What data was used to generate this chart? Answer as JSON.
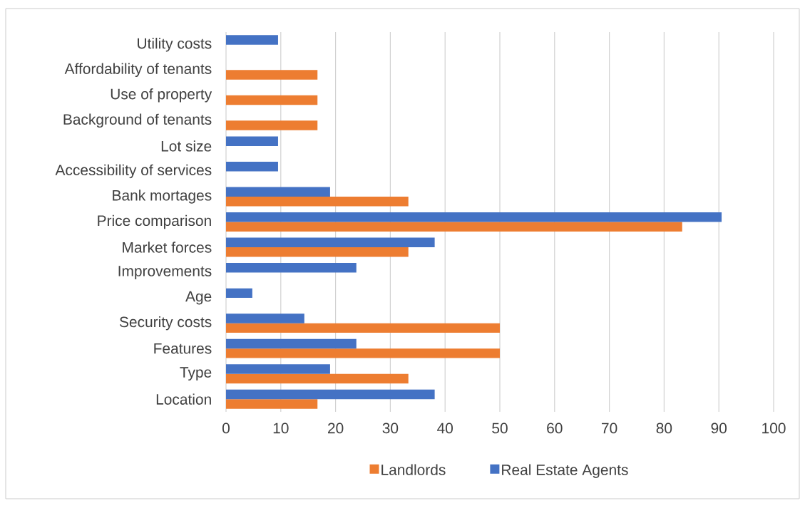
{
  "chart_data": {
    "type": "bar",
    "orientation": "horizontal",
    "categories": [
      "Utility costs",
      "Affordability of tenants",
      "Use of property",
      "Background of tenants",
      "Lot size",
      "Accessibility of services",
      "Bank mortages",
      "Price comparison",
      "Market forces",
      "Improvements",
      "Age",
      "Security costs",
      "Features",
      "Type",
      "Location"
    ],
    "series": [
      {
        "name": "Landlords",
        "color": "#ed7d31",
        "values": [
          null,
          16.7,
          16.7,
          16.7,
          null,
          null,
          33.3,
          83.3,
          33.3,
          null,
          null,
          50,
          50,
          33.3,
          16.7
        ]
      },
      {
        "name": "Real Estate Agents",
        "color": "#4472c4",
        "values": [
          9.5,
          null,
          null,
          null,
          9.5,
          9.5,
          19.0,
          90.5,
          38.1,
          23.8,
          4.8,
          14.3,
          23.8,
          19.0,
          38.1
        ]
      }
    ],
    "xlim": [
      0,
      100
    ],
    "xticks": [
      0,
      10,
      20,
      30,
      40,
      50,
      60,
      70,
      80,
      90,
      100
    ],
    "grid": "x",
    "legend": "bottom"
  }
}
